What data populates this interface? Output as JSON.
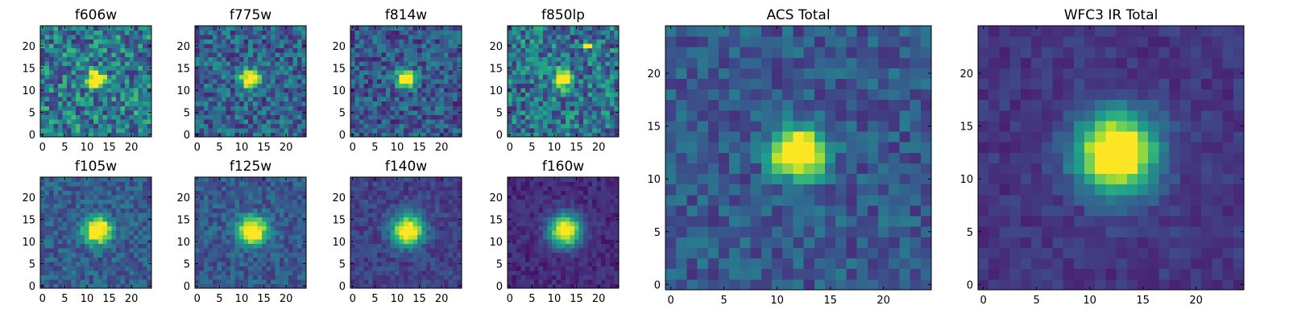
{
  "figure": {
    "description_free": true
  },
  "colormap": {
    "name": "viridis",
    "stops": [
      "#440154",
      "#482878",
      "#3e4989",
      "#31688e",
      "#26828e",
      "#1f9e89",
      "#35b779",
      "#6ece58",
      "#b5de2b",
      "#fde725"
    ]
  },
  "chart_data": [
    {
      "type": "heatmap",
      "title": "f606w",
      "xlim": [
        0,
        25
      ],
      "ylim": [
        0,
        25
      ],
      "xticks": [
        0,
        5,
        10,
        15,
        20
      ],
      "yticks": [
        0,
        5,
        10,
        15,
        20
      ],
      "center": [
        12,
        12.5
      ],
      "sigma": 1.3,
      "peak": 1.0,
      "background": 0.42,
      "noise": 0.28,
      "seed": 11
    },
    {
      "type": "heatmap",
      "title": "f775w",
      "xlim": [
        0,
        25
      ],
      "ylim": [
        0,
        25
      ],
      "xticks": [
        0,
        5,
        10,
        15,
        20
      ],
      "yticks": [
        0,
        5,
        10,
        15,
        20
      ],
      "center": [
        12,
        12.5
      ],
      "sigma": 1.4,
      "peak": 1.0,
      "background": 0.32,
      "noise": 0.22,
      "seed": 23
    },
    {
      "type": "heatmap",
      "title": "f814w",
      "xlim": [
        0,
        25
      ],
      "ylim": [
        0,
        25
      ],
      "xticks": [
        0,
        5,
        10,
        15,
        20
      ],
      "yticks": [
        0,
        5,
        10,
        15,
        20
      ],
      "center": [
        12,
        12.5
      ],
      "sigma": 1.4,
      "peak": 1.0,
      "background": 0.28,
      "noise": 0.2,
      "seed": 37
    },
    {
      "type": "heatmap",
      "title": "f850lp",
      "xlim": [
        0,
        25
      ],
      "ylim": [
        0,
        25
      ],
      "xticks": [
        0,
        5,
        10,
        15,
        20
      ],
      "yticks": [
        0,
        5,
        10,
        15,
        20
      ],
      "center": [
        12,
        12.5
      ],
      "sigma": 1.3,
      "peak": 1.0,
      "background": 0.38,
      "noise": 0.26,
      "seed": 41,
      "hot_pixels": [
        [
          17,
          20
        ],
        [
          18,
          20
        ]
      ]
    },
    {
      "type": "heatmap",
      "title": "f105w",
      "xlim": [
        0,
        25
      ],
      "ylim": [
        0,
        25
      ],
      "xticks": [
        0,
        5,
        10,
        15,
        20
      ],
      "yticks": [
        0,
        5,
        10,
        15,
        20
      ],
      "center": [
        12.5,
        12.5
      ],
      "sigma": 2.0,
      "peak": 1.0,
      "background": 0.3,
      "noise": 0.14,
      "seed": 53
    },
    {
      "type": "heatmap",
      "title": "f125w",
      "xlim": [
        0,
        25
      ],
      "ylim": [
        0,
        25
      ],
      "xticks": [
        0,
        5,
        10,
        15,
        20
      ],
      "yticks": [
        0,
        5,
        10,
        15,
        20
      ],
      "center": [
        12.5,
        12.5
      ],
      "sigma": 2.1,
      "peak": 1.0,
      "background": 0.28,
      "noise": 0.13,
      "seed": 67
    },
    {
      "type": "heatmap",
      "title": "f140w",
      "xlim": [
        0,
        25
      ],
      "ylim": [
        0,
        25
      ],
      "xticks": [
        0,
        5,
        10,
        15,
        20
      ],
      "yticks": [
        0,
        5,
        10,
        15,
        20
      ],
      "center": [
        12.5,
        12.5
      ],
      "sigma": 2.3,
      "peak": 1.0,
      "background": 0.2,
      "noise": 0.1,
      "seed": 71
    },
    {
      "type": "heatmap",
      "title": "f160w",
      "xlim": [
        0,
        25
      ],
      "ylim": [
        0,
        25
      ],
      "xticks": [
        0,
        5,
        10,
        15,
        20
      ],
      "yticks": [
        0,
        5,
        10,
        15,
        20
      ],
      "center": [
        12.5,
        12.5
      ],
      "sigma": 2.5,
      "peak": 1.0,
      "background": 0.12,
      "noise": 0.08,
      "seed": 83
    },
    {
      "type": "heatmap",
      "title": "ACS Total",
      "xlim": [
        0,
        25
      ],
      "ylim": [
        0,
        25
      ],
      "xticks": [
        0,
        5,
        10,
        15,
        20
      ],
      "yticks": [
        0,
        5,
        10,
        15,
        20
      ],
      "center": [
        12,
        12.5
      ],
      "sigma": 1.6,
      "peak": 1.15,
      "background": 0.28,
      "noise": 0.14,
      "seed": 97
    },
    {
      "type": "heatmap",
      "title": "WFC3 IR Total",
      "xlim": [
        0,
        25
      ],
      "ylim": [
        0,
        25
      ],
      "xticks": [
        0,
        5,
        10,
        15,
        20
      ],
      "yticks": [
        0,
        5,
        10,
        15,
        20
      ],
      "center": [
        12.5,
        12.5
      ],
      "sigma": 2.6,
      "peak": 1.1,
      "background": 0.16,
      "noise": 0.07,
      "seed": 101
    }
  ]
}
